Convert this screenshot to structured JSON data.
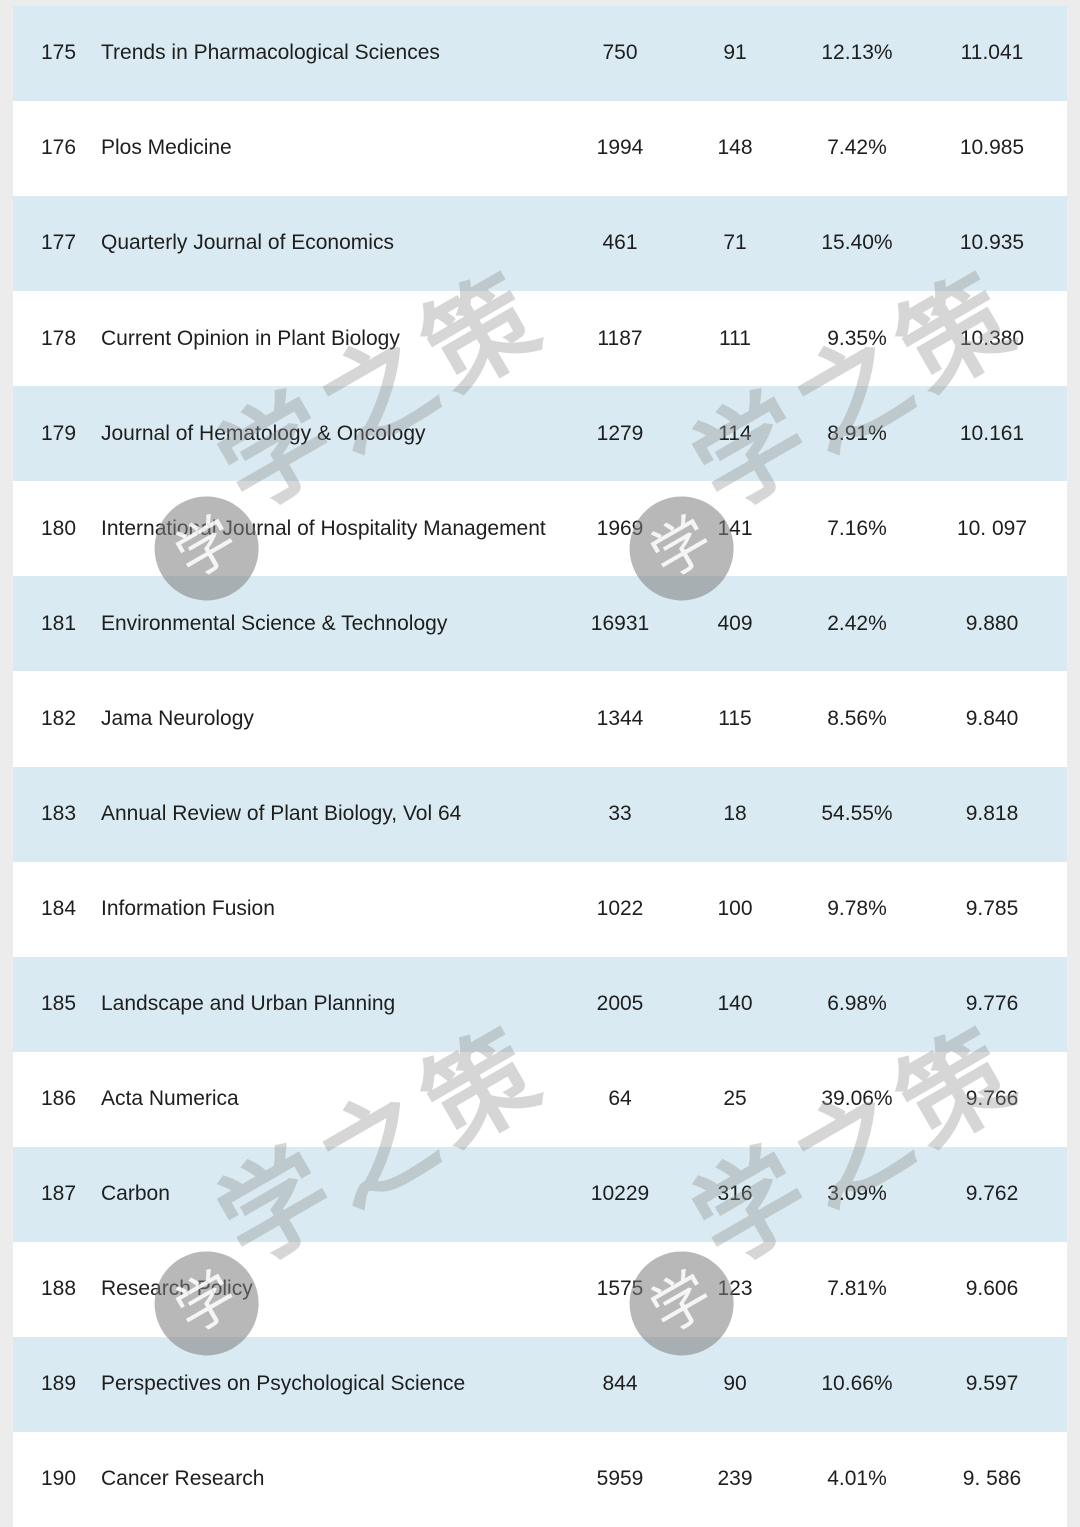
{
  "colors": {
    "stripe_row": "#d9eaf2",
    "plain_row": "#ffffff",
    "text": "#1e1e1e",
    "watermark_gray": "#949494"
  },
  "watermark": {
    "text": "学之策",
    "seal_char": "学"
  },
  "table": {
    "rows": [
      {
        "rank": "175",
        "name": "Trends in Pharmacological Sciences",
        "c1": "750",
        "c2": "91",
        "c3": "12.13%",
        "c4": "11.041"
      },
      {
        "rank": "176",
        "name": "Plos Medicine",
        "c1": "1994",
        "c2": "148",
        "c3": "7.42%",
        "c4": "10.985"
      },
      {
        "rank": "177",
        "name": "Quarterly Journal of Economics",
        "c1": "461",
        "c2": "71",
        "c3": "15.40%",
        "c4": "10.935"
      },
      {
        "rank": "178",
        "name": "Current Opinion in Plant Biology",
        "c1": "1187",
        "c2": "111",
        "c3": "9.35%",
        "c4": "10.380"
      },
      {
        "rank": "179",
        "name": "Journal of Hematology & Oncology",
        "c1": "1279",
        "c2": "114",
        "c3": "8.91%",
        "c4": "10.161"
      },
      {
        "rank": "180",
        "name": "International Journal of Hospitality Management",
        "c1": "1969",
        "c2": "141",
        "c3": "7.16%",
        "c4": "10. 097"
      },
      {
        "rank": "181",
        "name": "Environmental Science & Technology",
        "c1": "16931",
        "c2": "409",
        "c3": "2.42%",
        "c4": "9.880"
      },
      {
        "rank": "182",
        "name": "Jama Neurology",
        "c1": "1344",
        "c2": "115",
        "c3": "8.56%",
        "c4": "9.840"
      },
      {
        "rank": "183",
        "name": "Annual Review of Plant Biology, Vol 64",
        "c1": "33",
        "c2": "18",
        "c3": "54.55%",
        "c4": "9.818"
      },
      {
        "rank": "184",
        "name": "Information Fusion",
        "c1": "1022",
        "c2": "100",
        "c3": "9.78%",
        "c4": "9.785"
      },
      {
        "rank": "185",
        "name": "Landscape and Urban Planning",
        "c1": "2005",
        "c2": "140",
        "c3": "6.98%",
        "c4": "9.776"
      },
      {
        "rank": "186",
        "name": "Acta Numerica",
        "c1": "64",
        "c2": "25",
        "c3": "39.06%",
        "c4": "9.766"
      },
      {
        "rank": "187",
        "name": "Carbon",
        "c1": "10229",
        "c2": "316",
        "c3": "3.09%",
        "c4": "9.762"
      },
      {
        "rank": "188",
        "name": "Research Policy",
        "c1": "1575",
        "c2": "123",
        "c3": "7.81%",
        "c4": "9.606"
      },
      {
        "rank": "189",
        "name": "Perspectives on Psychological Science",
        "c1": "844",
        "c2": "90",
        "c3": "10.66%",
        "c4": "9.597"
      },
      {
        "rank": "190",
        "name": "Cancer Research",
        "c1": "5959",
        "c2": "239",
        "c3": "4.01%",
        "c4": "9. 586"
      }
    ]
  }
}
